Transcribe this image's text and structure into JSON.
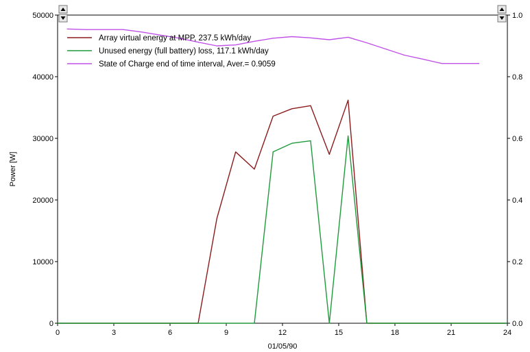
{
  "chart_data": {
    "type": "line",
    "title": "",
    "xlabel": "01/05/90",
    "ylabel": "Power  [W]",
    "xlim": [
      0,
      24
    ],
    "ylim": [
      0,
      50000
    ],
    "y2lim": [
      0,
      1.0
    ],
    "grid": false,
    "legend_position": "top-left",
    "x_ticks": [
      "0",
      "3",
      "6",
      "9",
      "12",
      "15",
      "18",
      "21",
      "24"
    ],
    "y_ticks": [
      "0",
      "10000",
      "20000",
      "30000",
      "40000",
      "50000"
    ],
    "y2_ticks": [
      "0.0",
      "0.2",
      "0.4",
      "0.6",
      "0.8",
      "1.0"
    ],
    "x_tick_values": [
      0,
      3,
      6,
      9,
      12,
      15,
      18,
      21,
      24
    ],
    "y_tick_values": [
      0,
      10000,
      20000,
      30000,
      40000,
      50000
    ],
    "y2_tick_values": [
      0,
      0.2,
      0.4,
      0.6,
      0.8,
      1.0
    ],
    "series": [
      {
        "name": "Array virtual energy at MPP,  237.5 kWh/day",
        "color": "#8b1a1a",
        "axis": "left",
        "x": [
          0,
          7.5,
          8.5,
          9.5,
          10.5,
          11.5,
          12.5,
          13.5,
          14.5,
          15.5,
          16.5,
          24
        ],
        "y": [
          0,
          0,
          17000,
          27800,
          25000,
          33600,
          34800,
          35300,
          27400,
          36200,
          0,
          0
        ]
      },
      {
        "name": "Unused energy (full battery) loss,  117.1 kWh/day",
        "color": "#1f9a3a",
        "axis": "left",
        "x": [
          0,
          10.5,
          11.5,
          12.5,
          13.5,
          14.5,
          15.5,
          16.5,
          24
        ],
        "y": [
          0,
          0,
          27800,
          29200,
          29600,
          0,
          30400,
          0,
          0
        ]
      },
      {
        "name": "State of Charge end of time interval,  Aver.= 0.9059",
        "color": "#c050e8",
        "axis": "right",
        "x": [
          0.5,
          1.5,
          2.5,
          3.5,
          4.5,
          5.5,
          6.5,
          7.5,
          8.5,
          9.5,
          10.5,
          11.5,
          12.5,
          13.5,
          14.5,
          15.5,
          16.5,
          17.5,
          18.5,
          19.5,
          20.5,
          21.5,
          22.5
        ],
        "y": [
          0.955,
          0.953,
          0.953,
          0.953,
          0.945,
          0.935,
          0.925,
          0.912,
          0.9,
          0.903,
          0.915,
          0.925,
          0.93,
          0.926,
          0.92,
          0.928,
          0.91,
          0.89,
          0.87,
          0.857,
          0.843,
          0.843,
          0.843
        ]
      }
    ]
  }
}
